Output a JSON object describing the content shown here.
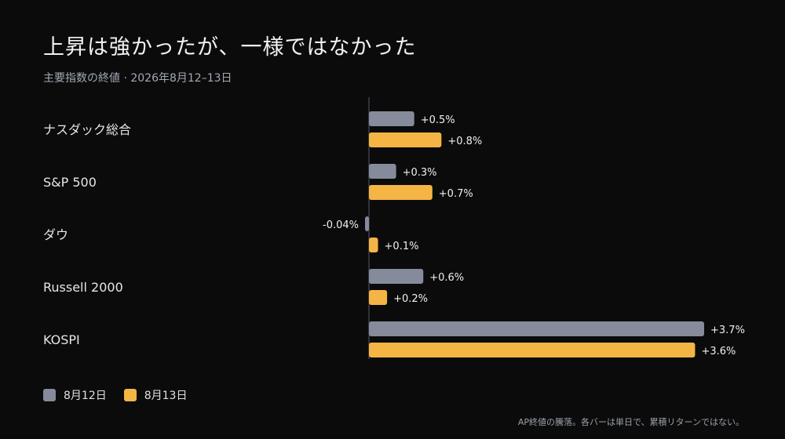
{
  "title": "上昇は強かったが、一様ではなかった",
  "subtitle": "主要指数の終値 · 2026年8月12–13日",
  "footnote": "AP終値の騰落。各バーは単日で、累積リターンではない。",
  "colors": {
    "background": "#0b0b0b",
    "series_1": "#858b9b",
    "series_2": "#f5b544",
    "axis": "#555a66"
  },
  "legend": [
    {
      "label": "8月12日",
      "color": "#858b9b"
    },
    {
      "label": "8月13日",
      "color": "#f5b544"
    }
  ],
  "chart_data": {
    "type": "bar",
    "orientation": "horizontal",
    "unit": "%",
    "categories": [
      "ナスダック総合",
      "S&P 500",
      "ダウ",
      "Russell 2000",
      "KOSPI"
    ],
    "series": [
      {
        "name": "8月12日",
        "values": [
          0.5,
          0.3,
          -0.04,
          0.6,
          3.7
        ],
        "labels": [
          "+0.5%",
          "+0.3%",
          "-0.04%",
          "+0.6%",
          "+3.7%"
        ]
      },
      {
        "name": "8月13日",
        "values": [
          0.8,
          0.7,
          0.1,
          0.2,
          3.6
        ],
        "labels": [
          "+0.8%",
          "+0.7%",
          "+0.1%",
          "+0.2%",
          "+3.6%"
        ]
      }
    ],
    "xlim": [
      0,
      3.7
    ],
    "grid": false,
    "legend_position": "bottom-left"
  }
}
